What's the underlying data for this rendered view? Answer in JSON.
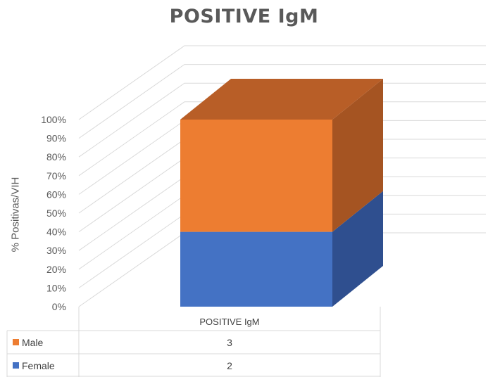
{
  "chart_data": {
    "type": "bar",
    "stacked": true,
    "percent_stacked": true,
    "three_d": true,
    "title": "POSITIVE IgM",
    "ylabel": "% Positivas/VIH",
    "xlabel": "",
    "categories": [
      "POSITIVE IgM"
    ],
    "ylim": [
      0,
      100
    ],
    "yticks": [
      "0%",
      "10%",
      "20%",
      "30%",
      "40%",
      "50%",
      "60%",
      "70%",
      "80%",
      "90%",
      "100%"
    ],
    "grid": true,
    "series": [
      {
        "name": "Female",
        "values": [
          2
        ],
        "color": "#4472C4",
        "side_color": "#2F4F8F",
        "top_color": "#3A62A8"
      },
      {
        "name": "Male",
        "values": [
          3
        ],
        "color": "#ED7D31",
        "side_color": "#A55422",
        "top_color": "#B85E27"
      }
    ],
    "data_table": {
      "header": "POSITIVE IgM",
      "rows": [
        {
          "series": "Male",
          "value": "3"
        },
        {
          "series": "Female",
          "value": "2"
        }
      ]
    }
  }
}
